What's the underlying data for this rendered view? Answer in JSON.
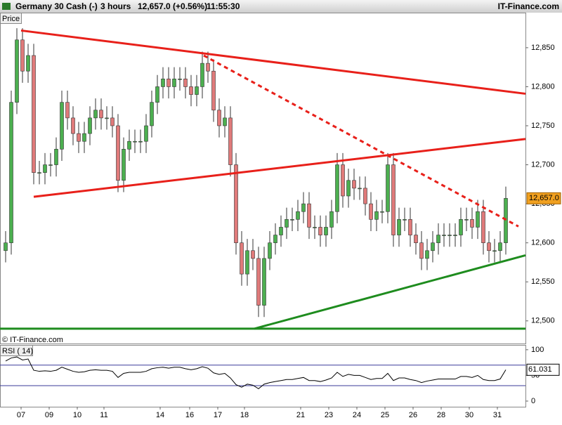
{
  "chart_data": {
    "type": "candlestick",
    "title": "Germany 30 Cash (-)",
    "timeframe": "3 hours",
    "change": "12,657.0 (+0.56%)",
    "time": "11:55:30",
    "brand": "IT-Finance.com",
    "panel_label": "Price",
    "copyright": "© IT-Finance.com",
    "last_label": "12,657.0",
    "up_color": "#4caf50",
    "down_color": "#e07a7a",
    "xlim": [
      -1,
      92.5
    ],
    "xticks": [
      {
        "value": 2.75,
        "label": "07"
      },
      {
        "value": 7.75,
        "label": "09"
      },
      {
        "value": 12.75,
        "label": "10"
      },
      {
        "value": 17.5,
        "label": "11"
      },
      {
        "value": 27.5,
        "label": "14"
      },
      {
        "value": 32.75,
        "label": "16"
      },
      {
        "value": 37.75,
        "label": "17"
      },
      {
        "value": 42.5,
        "label": "18"
      },
      {
        "value": 52.5,
        "label": "21"
      },
      {
        "value": 57.5,
        "label": "23"
      },
      {
        "value": 62.5,
        "label": "24"
      },
      {
        "value": 67.5,
        "label": "25"
      },
      {
        "value": 72.5,
        "label": "26"
      },
      {
        "value": 77.5,
        "label": "28"
      },
      {
        "value": 82.5,
        "label": "30"
      },
      {
        "value": 87.5,
        "label": "31"
      }
    ],
    "ylim": [
      12471,
      12894
    ],
    "yticks": [
      {
        "value": 12500,
        "label": "12,500"
      },
      {
        "value": 12550,
        "label": "12,550"
      },
      {
        "value": 12600,
        "label": "12,600"
      },
      {
        "value": 12650,
        "label": "12,650"
      },
      {
        "value": 12700,
        "label": "12,700"
      },
      {
        "value": 12750,
        "label": "12,750"
      },
      {
        "value": 12800,
        "label": "12,800"
      },
      {
        "value": 12850,
        "label": "12,850"
      }
    ],
    "open": [
      12590,
      12600,
      12780,
      12860,
      12820,
      12840,
      12690,
      12690,
      12700,
      12700,
      12720,
      12780,
      12760,
      12740,
      12730,
      12740,
      12760,
      12770,
      12760,
      12760,
      12750,
      12680,
      12720,
      12730,
      12730,
      12730,
      12750,
      12780,
      12800,
      12810,
      12800,
      12810,
      12810,
      12800,
      12790,
      12800,
      12830,
      12820,
      12770,
      12750,
      12760,
      12700,
      12600,
      12560,
      12590,
      12580,
      12520,
      12580,
      12600,
      12610,
      12620,
      12630,
      12630,
      12640,
      12650,
      12620,
      12620,
      12610,
      12620,
      12640,
      12700,
      12660,
      12680,
      12670,
      12670,
      12650,
      12630,
      12640,
      12640,
      12700,
      12610,
      12630,
      12630,
      12610,
      12600,
      12580,
      12590,
      12600,
      12610,
      12610,
      12610,
      12610,
      12630,
      12630,
      12620,
      12640,
      12600,
      12590,
      12590,
      12600
    ],
    "high": [
      12615,
      12795,
      12875,
      12875,
      12855,
      12855,
      12705,
      12715,
      12715,
      12735,
      12795,
      12795,
      12775,
      12755,
      12755,
      12775,
      12785,
      12785,
      12775,
      12775,
      12765,
      12735,
      12745,
      12745,
      12745,
      12765,
      12795,
      12815,
      12825,
      12825,
      12825,
      12825,
      12825,
      12815,
      12815,
      12845,
      12845,
      12835,
      12785,
      12775,
      12775,
      12715,
      12615,
      12605,
      12605,
      12595,
      12595,
      12615,
      12625,
      12635,
      12645,
      12645,
      12655,
      12665,
      12665,
      12635,
      12635,
      12635,
      12655,
      12715,
      12715,
      12695,
      12695,
      12685,
      12685,
      12665,
      12655,
      12655,
      12715,
      12715,
      12645,
      12645,
      12645,
      12625,
      12615,
      12605,
      12615,
      12625,
      12625,
      12625,
      12625,
      12645,
      12645,
      12645,
      12655,
      12655,
      12615,
      12605,
      12615,
      12672
    ],
    "low": [
      12575,
      12585,
      12765,
      12805,
      12805,
      12675,
      12675,
      12675,
      12685,
      12685,
      12705,
      12745,
      12725,
      12715,
      12715,
      12725,
      12745,
      12745,
      12745,
      12735,
      12665,
      12665,
      12705,
      12715,
      12715,
      12715,
      12735,
      12765,
      12785,
      12785,
      12785,
      12795,
      12785,
      12775,
      12775,
      12785,
      12805,
      12755,
      12735,
      12735,
      12685,
      12585,
      12545,
      12545,
      12565,
      12505,
      12505,
      12565,
      12585,
      12595,
      12605,
      12615,
      12615,
      12625,
      12605,
      12605,
      12595,
      12595,
      12605,
      12625,
      12645,
      12645,
      12655,
      12655,
      12635,
      12615,
      12615,
      12625,
      12625,
      12595,
      12595,
      12615,
      12595,
      12585,
      12565,
      12565,
      12575,
      12585,
      12595,
      12595,
      12595,
      12595,
      12615,
      12605,
      12605,
      12585,
      12575,
      12575,
      12575,
      12585
    ],
    "close": [
      12600,
      12780,
      12860,
      12820,
      12840,
      12690,
      12690,
      12700,
      12700,
      12720,
      12780,
      12760,
      12740,
      12730,
      12740,
      12760,
      12770,
      12760,
      12760,
      12750,
      12680,
      12720,
      12730,
      12730,
      12730,
      12750,
      12780,
      12800,
      12810,
      12800,
      12810,
      12810,
      12800,
      12790,
      12800,
      12830,
      12820,
      12770,
      12750,
      12760,
      12700,
      12600,
      12560,
      12590,
      12580,
      12520,
      12580,
      12600,
      12610,
      12620,
      12630,
      12630,
      12640,
      12650,
      12620,
      12620,
      12610,
      12620,
      12640,
      12700,
      12660,
      12680,
      12670,
      12670,
      12650,
      12630,
      12640,
      12640,
      12700,
      12610,
      12630,
      12630,
      12610,
      12600,
      12580,
      12590,
      12600,
      12610,
      12610,
      12610,
      12610,
      12630,
      12630,
      12620,
      12640,
      12600,
      12590,
      12590,
      12600,
      12657
    ],
    "trend_lines": [
      {
        "color": "#e8201a",
        "dashed": false,
        "x": [
          2.75,
          92.5
        ],
        "y": [
          12872,
          12791
        ]
      },
      {
        "color": "#e8201a",
        "dashed": true,
        "x": [
          35.25,
          91.25
        ],
        "y": [
          12840,
          12621
        ]
      },
      {
        "color": "#e8201a",
        "dashed": false,
        "x": [
          5,
          92.5
        ],
        "y": [
          12659,
          12733
        ]
      },
      {
        "color": "#1e8c1e",
        "dashed": false,
        "x": [
          44.25,
          92.5
        ],
        "y": [
          12490,
          12584
        ]
      },
      {
        "color": "#1e8c1e",
        "dashed": false,
        "x": [
          -1,
          92.5
        ],
        "y": [
          12490,
          12490
        ]
      }
    ],
    "indicator": {
      "name": "RSI ( 14)",
      "color": "#000000",
      "level_color": "#3a3a9a",
      "levels": [
        70,
        30
      ],
      "ylim": [
        -11,
        108
      ],
      "yticks": [
        0,
        50,
        100
      ],
      "last_label": "61.031",
      "values": [
        78,
        84,
        86,
        80,
        82,
        60,
        58,
        59,
        58,
        60,
        66,
        62,
        58,
        56,
        57,
        60,
        61,
        60,
        60,
        58,
        46,
        54,
        56,
        56,
        56,
        58,
        63,
        65,
        66,
        64,
        66,
        66,
        63,
        61,
        63,
        67,
        64,
        55,
        52,
        54,
        45,
        32,
        27,
        33,
        31,
        24,
        33,
        36,
        38,
        40,
        42,
        42,
        44,
        46,
        40,
        40,
        38,
        41,
        45,
        56,
        48,
        52,
        50,
        50,
        46,
        42,
        44,
        44,
        54,
        40,
        45,
        45,
        42,
        40,
        36,
        39,
        41,
        43,
        43,
        43,
        43,
        48,
        48,
        46,
        50,
        42,
        40,
        40,
        43,
        61.031
      ]
    }
  }
}
